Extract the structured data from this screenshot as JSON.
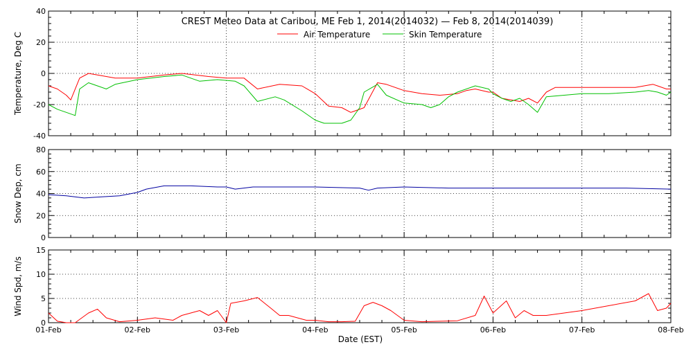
{
  "title": "CREST Meteo Data at Caribou, ME   Feb  1, 2014(2014032) — Feb  8, 2014(2014039)",
  "xlabel": "Date (EST)",
  "x_ticks": [
    "01-Feb",
    "02-Feb",
    "03-Feb",
    "04-Feb",
    "05-Feb",
    "06-Feb",
    "07-Feb",
    "08-Feb"
  ],
  "colors": {
    "air": "#ff0000",
    "skin": "#00c000",
    "snow": "#0000a0",
    "wind": "#ff0000"
  },
  "chart_data": [
    {
      "type": "line",
      "ylabel": "Temperature, Deg C",
      "ylim": [
        -40,
        40
      ],
      "y_ticks": [
        "-40",
        "-20",
        "0",
        "20",
        "40"
      ],
      "x_unit": "days since 01-Feb 00:00 EST",
      "legend_position": "top-center",
      "grid": true,
      "series": [
        {
          "name": "Air Temperature",
          "color": "#ff0000",
          "x": [
            0,
            0.1,
            0.2,
            0.25,
            0.35,
            0.45,
            0.55,
            0.75,
            1,
            1.3,
            1.5,
            1.8,
            2,
            2.2,
            2.35,
            2.6,
            2.85,
            3,
            3.15,
            3.3,
            3.4,
            3.55,
            3.7,
            3.8,
            4,
            4.2,
            4.4,
            4.6,
            4.7,
            4.8,
            4.95,
            5,
            5.1,
            5.3,
            5.4,
            5.5,
            5.6,
            5.7,
            6,
            6.3,
            6.6,
            6.8,
            6.85,
            6.95,
            7
          ],
          "y": [
            -8,
            -10,
            -14,
            -17,
            -3,
            0,
            -1,
            -3,
            -3,
            -1,
            0,
            -2,
            -3,
            -3,
            -10,
            -7,
            -8,
            -13,
            -21,
            -22,
            -25,
            -22,
            -6,
            -7,
            -11,
            -13,
            -14,
            -13,
            -11,
            -10,
            -12,
            -12,
            -16,
            -18,
            -16,
            -19,
            -12,
            -9,
            -9,
            -9,
            -9,
            -7,
            -8,
            -10,
            -10
          ]
        },
        {
          "name": "Skin Temperature",
          "color": "#00c000",
          "x": [
            0,
            0.1,
            0.2,
            0.3,
            0.35,
            0.45,
            0.55,
            0.65,
            0.75,
            1,
            1.3,
            1.5,
            1.7,
            1.9,
            2.1,
            2.2,
            2.35,
            2.55,
            2.65,
            2.85,
            3,
            3.1,
            3.2,
            3.3,
            3.4,
            3.5,
            3.55,
            3.7,
            3.8,
            4,
            4.2,
            4.3,
            4.4,
            4.5,
            4.6,
            4.8,
            4.95,
            5,
            5.1,
            5.2,
            5.3,
            5.4,
            5.5,
            5.6,
            6,
            6.3,
            6.6,
            6.75,
            6.85,
            6.95,
            7
          ],
          "y": [
            -20,
            -23,
            -25,
            -27,
            -10,
            -6,
            -8,
            -10,
            -7,
            -4,
            -2,
            -1,
            -5,
            -4,
            -5,
            -8,
            -18,
            -15,
            -17,
            -24,
            -30,
            -32,
            -32,
            -32,
            -30,
            -22,
            -12,
            -7,
            -14,
            -19,
            -20,
            -22,
            -20,
            -15,
            -12,
            -8,
            -10,
            -13,
            -16,
            -18,
            -16,
            -20,
            -25,
            -15,
            -13,
            -13,
            -12,
            -11,
            -12,
            -14,
            -12
          ]
        }
      ]
    },
    {
      "type": "line",
      "ylabel": "Snow Dep, cm",
      "ylim": [
        0,
        80
      ],
      "y_ticks": [
        "0",
        "20",
        "40",
        "60",
        "80"
      ],
      "x_unit": "days since 01-Feb 00:00 EST",
      "grid": true,
      "series": [
        {
          "name": "Snow Depth",
          "color": "#0000a0",
          "x": [
            0,
            0.2,
            0.4,
            0.6,
            0.8,
            1,
            1.1,
            1.3,
            1.6,
            1.9,
            2,
            2.1,
            2.3,
            3,
            3.5,
            3.6,
            3.7,
            4,
            4.5,
            5,
            6,
            6.5,
            7
          ],
          "y": [
            39,
            38,
            36,
            37,
            38,
            41,
            44,
            47,
            47,
            46,
            46,
            44,
            46,
            46,
            45,
            43,
            45,
            46,
            45,
            45,
            45,
            45,
            44
          ]
        }
      ]
    },
    {
      "type": "line",
      "ylabel": "Wind Spd, m/s",
      "ylim": [
        0,
        15
      ],
      "y_ticks": [
        "0",
        "5",
        "10",
        "15"
      ],
      "x_unit": "days since 01-Feb 00:00 EST",
      "grid": true,
      "series": [
        {
          "name": "Wind Speed",
          "color": "#ff0000",
          "x": [
            0,
            0.1,
            0.2,
            0.3,
            0.45,
            0.55,
            0.65,
            0.8,
            1,
            1.2,
            1.4,
            1.5,
            1.6,
            1.7,
            1.8,
            1.9,
            2,
            2.05,
            2.2,
            2.35,
            2.5,
            2.6,
            2.7,
            2.9,
            3,
            3.15,
            3.3,
            3.45,
            3.55,
            3.65,
            3.75,
            3.85,
            4,
            4.2,
            4.4,
            4.6,
            4.8,
            4.9,
            5,
            5.15,
            5.25,
            5.35,
            5.45,
            5.6,
            6,
            6.3,
            6.6,
            6.75,
            6.85,
            6.95,
            7
          ],
          "y": [
            2,
            0.3,
            0,
            0,
            2,
            2.8,
            1,
            0.2,
            0.5,
            1,
            0.5,
            1.5,
            2,
            2.5,
            1.5,
            2.5,
            0,
            4,
            4.5,
            5.2,
            3,
            1.5,
            1.5,
            0.5,
            0.5,
            0.2,
            0.2,
            0.3,
            3.5,
            4.2,
            3.5,
            2.5,
            0.5,
            0.2,
            0.3,
            0.4,
            1.5,
            5.5,
            2,
            4.5,
            1,
            2.5,
            1.5,
            1.5,
            2.5,
            3.5,
            4.5,
            6,
            2.5,
            3,
            4
          ]
        }
      ]
    }
  ]
}
